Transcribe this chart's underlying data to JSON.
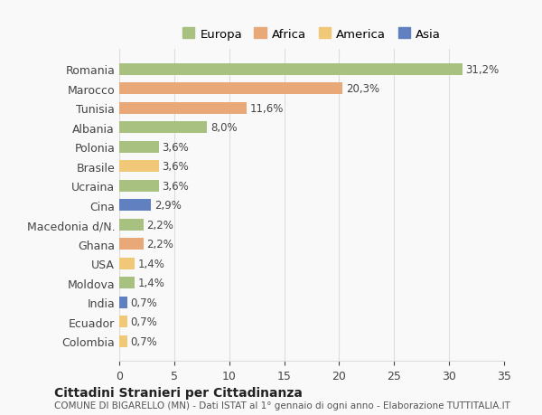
{
  "countries": [
    "Romania",
    "Marocco",
    "Tunisia",
    "Albania",
    "Polonia",
    "Brasile",
    "Ucraina",
    "Cina",
    "Macedonia d/N.",
    "Ghana",
    "USA",
    "Moldova",
    "India",
    "Ecuador",
    "Colombia"
  ],
  "values": [
    31.2,
    20.3,
    11.6,
    8.0,
    3.6,
    3.6,
    3.6,
    2.9,
    2.2,
    2.2,
    1.4,
    1.4,
    0.7,
    0.7,
    0.7
  ],
  "labels": [
    "31,2%",
    "20,3%",
    "11,6%",
    "8,0%",
    "3,6%",
    "3,6%",
    "3,6%",
    "2,9%",
    "2,2%",
    "2,2%",
    "1,4%",
    "1,4%",
    "0,7%",
    "0,7%",
    "0,7%"
  ],
  "colors": [
    "#a8c080",
    "#e8a878",
    "#e8a878",
    "#a8c080",
    "#a8c080",
    "#f0c878",
    "#a8c080",
    "#6080c0",
    "#a8c080",
    "#e8a878",
    "#f0c878",
    "#a8c080",
    "#6080c0",
    "#f0c878",
    "#f0c878"
  ],
  "legend_labels": [
    "Europa",
    "Africa",
    "America",
    "Asia"
  ],
  "legend_colors": [
    "#a8c080",
    "#e8a878",
    "#f0c878",
    "#6080c0"
  ],
  "title": "Cittadini Stranieri per Cittadinanza",
  "subtitle": "COMUNE DI BIGARELLO (MN) - Dati ISTAT al 1° gennaio di ogni anno - Elaborazione TUTTITALIA.IT",
  "xlim": [
    0,
    35
  ],
  "xticks": [
    0,
    5,
    10,
    15,
    20,
    25,
    30,
    35
  ],
  "background_color": "#f9f9f9",
  "grid_color": "#dddddd"
}
